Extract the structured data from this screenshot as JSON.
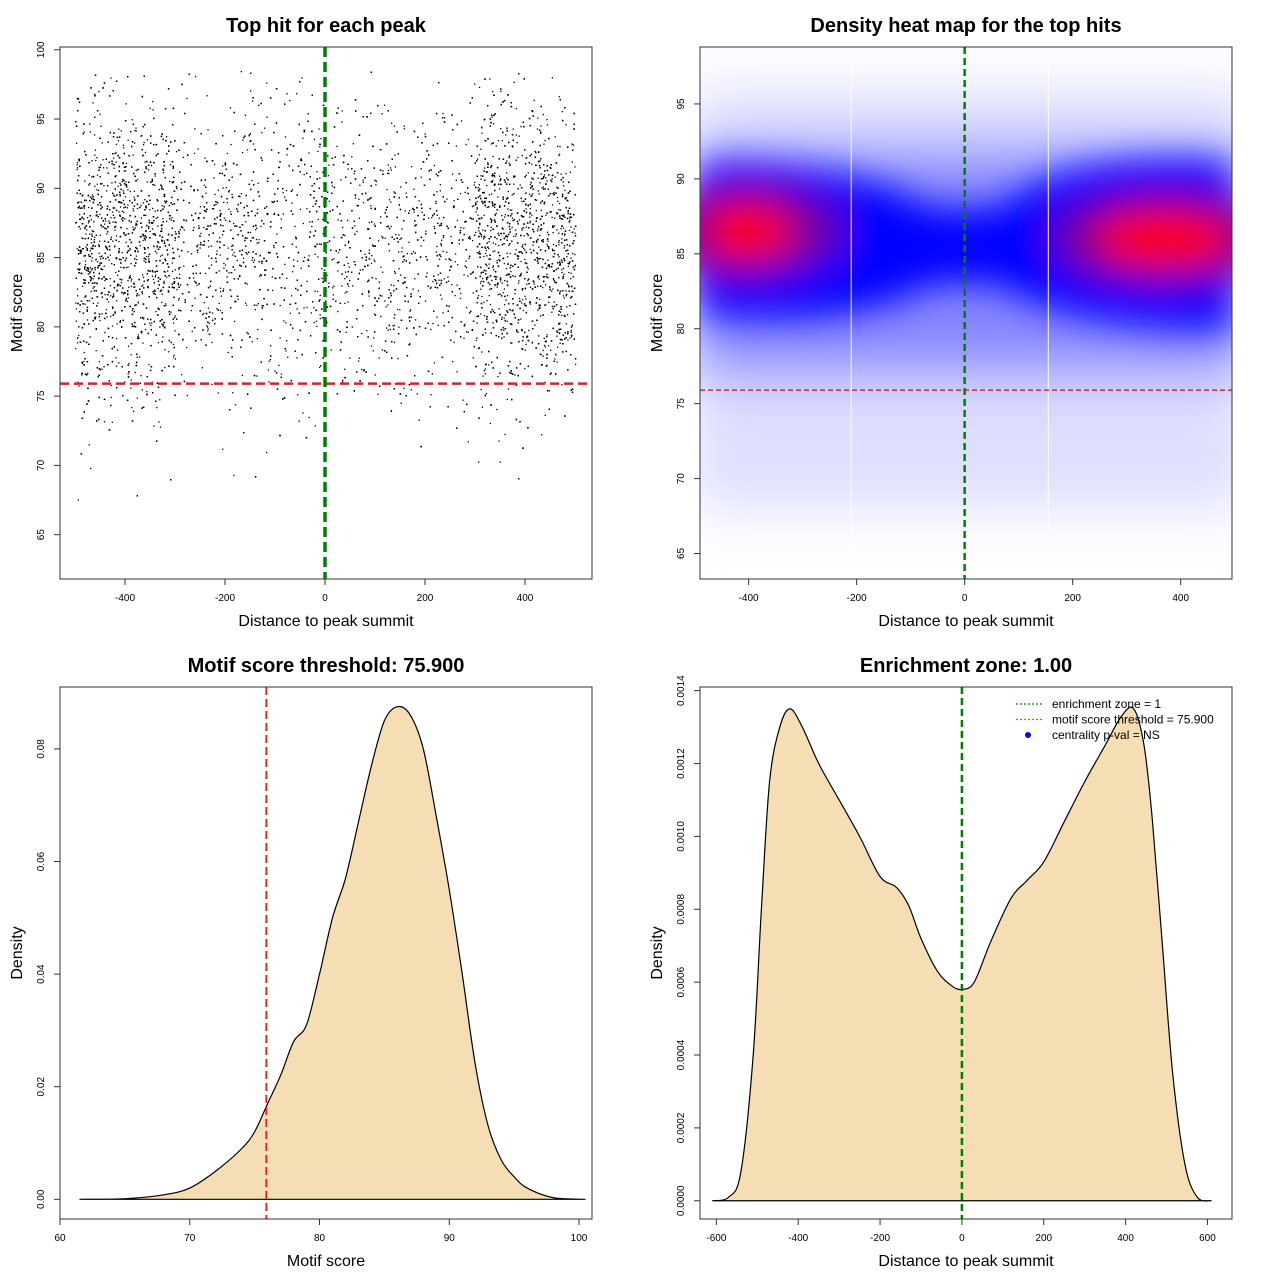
{
  "chart_data": [
    {
      "type": "scatter",
      "title": "Top hit for each peak",
      "xlabel": "Distance to peak summit",
      "ylabel": "Motif score",
      "xlim": [
        -530,
        534
      ],
      "ylim": [
        61.8,
        100.2
      ],
      "xticks": [
        -400,
        -200,
        0,
        200,
        400
      ],
      "yticks": [
        65,
        70,
        75,
        80,
        85,
        90,
        95,
        100
      ],
      "point_cloud": {
        "x_range": [
          -500,
          500
        ],
        "y_mode": 86,
        "y_sd": 5,
        "n_points": 9000,
        "note_shape": "denser near edges"
      },
      "vline": {
        "x": 0,
        "color": "#008000"
      },
      "hline": {
        "y": 75.9,
        "color": "#dd2222"
      }
    },
    {
      "type": "heatmap",
      "title": "Density heat map for the top hits",
      "xlabel": "Distance to peak summit",
      "ylabel": "Motif score",
      "xlim": [
        -490,
        495
      ],
      "ylim": [
        63.3,
        98.8
      ],
      "xticks": [
        -400,
        -200,
        0,
        200,
        400
      ],
      "yticks": [
        65,
        70,
        75,
        80,
        85,
        90,
        95
      ],
      "hotspots": [
        {
          "x": -400,
          "y": 86.5
        },
        {
          "x": 370,
          "y": 86
        }
      ],
      "vline": {
        "x": 0,
        "color": "#008000"
      },
      "hline": {
        "y": 75.9,
        "color": "#cc3333"
      }
    },
    {
      "type": "area",
      "title": "Motif score threshold: 75.900",
      "xlabel": "Motif score",
      "ylabel": "Density",
      "xlim": [
        60,
        101
      ],
      "ylim": [
        -0.0035,
        0.091
      ],
      "xticks": [
        60,
        70,
        80,
        90,
        100
      ],
      "yticks": [
        0.0,
        0.02,
        0.04,
        0.06,
        0.08
      ],
      "ytick_labels": [
        "0.00",
        "0.02",
        "0.04",
        "0.06",
        "0.08"
      ],
      "x": [
        61.5,
        65,
        68,
        70,
        72,
        74,
        75,
        76,
        77,
        78,
        79,
        80,
        81,
        82,
        83,
        84,
        85,
        86,
        87,
        88,
        89,
        90,
        91,
        92,
        93,
        94,
        95,
        96,
        98,
        100.5
      ],
      "y": [
        0,
        0.0001,
        0.0008,
        0.002,
        0.005,
        0.009,
        0.012,
        0.017,
        0.022,
        0.028,
        0.031,
        0.04,
        0.05,
        0.057,
        0.067,
        0.077,
        0.085,
        0.0875,
        0.086,
        0.08,
        0.068,
        0.055,
        0.04,
        0.024,
        0.013,
        0.007,
        0.004,
        0.002,
        0.0003,
        0
      ],
      "vline": {
        "x": 75.9,
        "color": "#dd2222"
      },
      "fill": "#f5deb3"
    },
    {
      "type": "area",
      "title": "Enrichment zone: 1.00",
      "xlabel": "Distance to peak summit",
      "ylabel": "Density",
      "xlim": [
        -640,
        660
      ],
      "ylim": [
        -5e-05,
        0.00141
      ],
      "xticks": [
        -600,
        -400,
        -200,
        0,
        200,
        400,
        600
      ],
      "yticks": [
        0,
        0.0002,
        0.0004,
        0.0006,
        0.0008,
        0.001,
        0.0012,
        0.0014
      ],
      "ytick_labels": [
        "0.0000",
        "0.0002",
        "0.0004",
        "0.0006",
        "0.0008",
        "0.0010",
        "0.0012",
        "0.0014"
      ],
      "x": [
        -610,
        -570,
        -540,
        -510,
        -490,
        -470,
        -445,
        -420,
        -390,
        -350,
        -300,
        -250,
        -200,
        -160,
        -130,
        -100,
        -60,
        -25,
        0,
        30,
        70,
        120,
        160,
        200,
        250,
        300,
        350,
        390,
        420,
        445,
        465,
        490,
        515,
        545,
        575,
        610
      ],
      "y": [
        0,
        1e-05,
        8e-05,
        0.0004,
        0.0008,
        0.00115,
        0.0013,
        0.00135,
        0.0013,
        0.0012,
        0.0011,
        0.001,
        0.00089,
        0.00086,
        0.00081,
        0.00072,
        0.00063,
        0.00059,
        0.00058,
        0.0006,
        0.00071,
        0.00083,
        0.00088,
        0.00093,
        0.00104,
        0.00115,
        0.00125,
        0.00133,
        0.00135,
        0.00125,
        0.00105,
        0.0007,
        0.00035,
        0.0001,
        1e-05,
        0
      ],
      "vline": {
        "x": 0,
        "color": "#008000"
      },
      "fill": "#f5deb3",
      "legend": {
        "placement": "top-right",
        "entries": [
          {
            "label": "enrichment zone = 1",
            "color": "#008000",
            "symbol": "dotted-line"
          },
          {
            "label": "motif score threshold = 75.900",
            "color": "#ff4444",
            "symbol": "dotted-line"
          },
          {
            "label": "centrality p-val = NS",
            "color": "#0000ff",
            "symbol": "dot"
          }
        ]
      }
    }
  ]
}
